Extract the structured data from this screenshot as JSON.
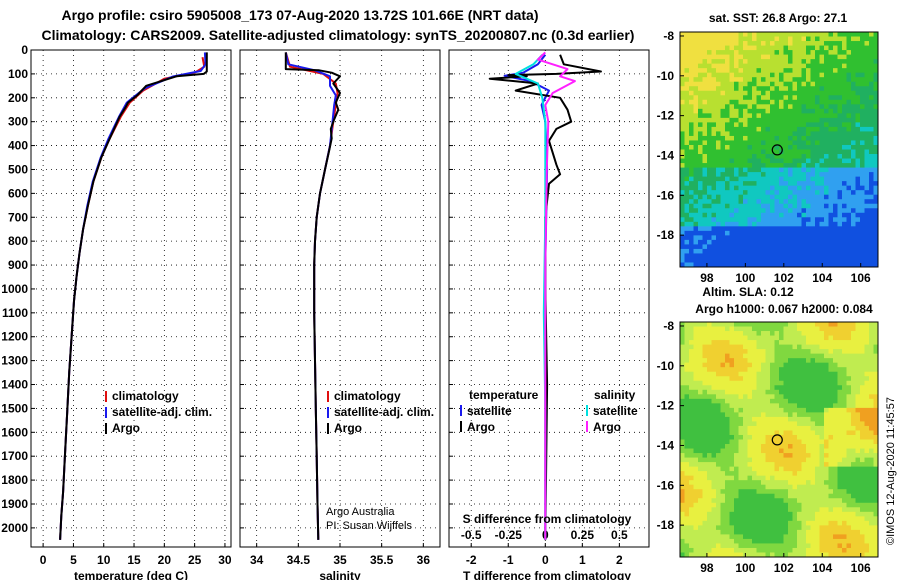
{
  "title": {
    "line1": "Argo profile: csiro 5905008_173 07-Aug-2020 13.72S 101.66E (NRT data)",
    "line2": "Climatology: CARS2009. Satellite-adjusted climatology: synTS_20200807.nc (0.3d earlier)"
  },
  "colors": {
    "climatology": "#e01010",
    "satellite": "#1a1aee",
    "argo": "#000000",
    "sat_salinity": "#00e0e0",
    "argo_salinity": "#ff20ff"
  },
  "chart_data": [
    {
      "type": "line",
      "name": "temperature",
      "xlabel": "temperature (deg C)",
      "xlim": [
        -2,
        31
      ],
      "xticks": [
        0,
        5,
        10,
        15,
        20,
        25,
        30
      ],
      "ylim": [
        0,
        2080
      ],
      "yticks": [
        0,
        100,
        200,
        300,
        400,
        500,
        600,
        700,
        800,
        900,
        1000,
        1100,
        1200,
        1300,
        1400,
        1500,
        1600,
        1700,
        1800,
        1900,
        2000
      ],
      "legend": [
        "climatology",
        "satellite-adj. clim.",
        "Argo"
      ],
      "series": [
        {
          "name": "climatology",
          "color": "#e01010",
          "points": [
            [
              26.3,
              30
            ],
            [
              26.6,
              70
            ],
            [
              25.0,
              95
            ],
            [
              20.0,
              120
            ],
            [
              16.5,
              170
            ],
            [
              14.3,
              220
            ],
            [
              12.8,
              280
            ],
            [
              11.0,
              370
            ],
            [
              9.6,
              450
            ],
            [
              8.3,
              550
            ],
            [
              7.4,
              650
            ],
            [
              6.6,
              750
            ],
            [
              6.0,
              850
            ],
            [
              5.5,
              950
            ],
            [
              5.1,
              1050
            ],
            [
              4.7,
              1200
            ],
            [
              4.3,
              1350
            ],
            [
              4.0,
              1500
            ],
            [
              3.6,
              1700
            ],
            [
              3.3,
              1850
            ],
            [
              3.0,
              1950
            ],
            [
              2.8,
              2050
            ]
          ]
        },
        {
          "name": "satellite-adj. clim.",
          "color": "#1a1aee",
          "points": [
            [
              26.7,
              10
            ],
            [
              26.8,
              60
            ],
            [
              26.0,
              88
            ],
            [
              21.5,
              110
            ],
            [
              16.8,
              160
            ],
            [
              13.8,
              220
            ],
            [
              12.5,
              280
            ],
            [
              10.8,
              370
            ],
            [
              9.5,
              450
            ],
            [
              8.2,
              550
            ],
            [
              7.3,
              650
            ],
            [
              6.6,
              750
            ],
            [
              6.0,
              850
            ],
            [
              5.5,
              950
            ],
            [
              5.1,
              1050
            ],
            [
              4.7,
              1200
            ],
            [
              4.3,
              1350
            ],
            [
              4.0,
              1500
            ],
            [
              3.6,
              1700
            ],
            [
              3.3,
              1850
            ],
            [
              3.0,
              1950
            ],
            [
              2.8,
              2050
            ]
          ]
        },
        {
          "name": "Argo",
          "color": "#000000",
          "points": [
            [
              27.0,
              10
            ],
            [
              27.0,
              90
            ],
            [
              26.5,
              100
            ],
            [
              22.0,
              110
            ],
            [
              17.0,
              150
            ],
            [
              15.5,
              190
            ],
            [
              14.0,
              220
            ],
            [
              13.6,
              240
            ],
            [
              12.6,
              280
            ],
            [
              11.0,
              370
            ],
            [
              9.6,
              450
            ],
            [
              8.3,
              550
            ],
            [
              7.4,
              650
            ],
            [
              6.6,
              750
            ],
            [
              6.0,
              850
            ],
            [
              5.5,
              950
            ],
            [
              5.1,
              1050
            ],
            [
              4.7,
              1200
            ],
            [
              4.3,
              1350
            ],
            [
              4.0,
              1500
            ],
            [
              3.6,
              1700
            ],
            [
              3.3,
              1850
            ],
            [
              3.0,
              1950
            ],
            [
              2.8,
              2050
            ]
          ]
        }
      ]
    },
    {
      "type": "line",
      "name": "salinity",
      "xlabel": "salinity",
      "xlim": [
        33.8,
        36.2
      ],
      "xticks": [
        34,
        34.5,
        35,
        35.5,
        36
      ],
      "xtick_labels": [
        "34",
        "34.5",
        "35",
        "35.5",
        "36"
      ],
      "ylim": [
        0,
        2080
      ],
      "legend": [
        "climatology",
        "satellite-adj. clim.",
        "Argo"
      ],
      "note": [
        "Argo Australia",
        "PI: Susan Wijffels"
      ],
      "series": [
        {
          "name": "climatology",
          "color": "#e01010",
          "points": [
            [
              34.35,
              10
            ],
            [
              34.4,
              70
            ],
            [
              34.8,
              100
            ],
            [
              34.95,
              140
            ],
            [
              34.97,
              180
            ],
            [
              34.95,
              230
            ],
            [
              34.92,
              300
            ],
            [
              34.88,
              400
            ],
            [
              34.82,
              500
            ],
            [
              34.76,
              600
            ],
            [
              34.72,
              700
            ],
            [
              34.7,
              800
            ],
            [
              34.69,
              900
            ],
            [
              34.69,
              1100
            ],
            [
              34.7,
              1300
            ],
            [
              34.71,
              1500
            ],
            [
              34.72,
              1700
            ],
            [
              34.73,
              1900
            ],
            [
              34.74,
              2050
            ]
          ]
        },
        {
          "name": "satellite-adj. clim.",
          "color": "#1a1aee",
          "points": [
            [
              34.35,
              10
            ],
            [
              34.38,
              60
            ],
            [
              34.7,
              85
            ],
            [
              34.88,
              110
            ],
            [
              34.88,
              150
            ],
            [
              34.95,
              190
            ],
            [
              34.93,
              230
            ],
            [
              34.91,
              300
            ],
            [
              34.88,
              400
            ],
            [
              34.82,
              500
            ],
            [
              34.76,
              600
            ],
            [
              34.72,
              700
            ],
            [
              34.7,
              800
            ],
            [
              34.69,
              900
            ],
            [
              34.69,
              1100
            ],
            [
              34.7,
              1300
            ],
            [
              34.71,
              1500
            ],
            [
              34.72,
              1700
            ],
            [
              34.73,
              1900
            ],
            [
              34.74,
              2050
            ]
          ]
        },
        {
          "name": "Argo",
          "color": "#000000",
          "points": [
            [
              34.35,
              10
            ],
            [
              34.35,
              80
            ],
            [
              34.75,
              85
            ],
            [
              34.9,
              95
            ],
            [
              35.0,
              110
            ],
            [
              34.92,
              140
            ],
            [
              35.0,
              180
            ],
            [
              34.95,
              220
            ],
            [
              34.98,
              250
            ],
            [
              34.93,
              290
            ],
            [
              34.89,
              330
            ],
            [
              34.9,
              370
            ],
            [
              34.87,
              420
            ],
            [
              34.82,
              500
            ],
            [
              34.76,
              600
            ],
            [
              34.72,
              700
            ],
            [
              34.7,
              800
            ],
            [
              34.69,
              900
            ],
            [
              34.69,
              1100
            ],
            [
              34.7,
              1300
            ],
            [
              34.71,
              1500
            ],
            [
              34.72,
              1700
            ],
            [
              34.73,
              1900
            ],
            [
              34.74,
              2050
            ]
          ]
        }
      ]
    },
    {
      "type": "line",
      "name": "difference",
      "xlabel": "T difference from climatology",
      "xlim": [
        -2.6,
        2.8
      ],
      "xticks": [
        -2,
        -1,
        0,
        1,
        2
      ],
      "top_axis_label": "S difference from climatology",
      "top_xlim": [
        -0.65,
        0.7
      ],
      "top_xticks": [
        -0.5,
        -0.25,
        0,
        0.25,
        0.5
      ],
      "top_xtick_labels": [
        "-0.5",
        "-0.25",
        "0",
        "0.25",
        "0.5"
      ],
      "ylim": [
        0,
        2080
      ],
      "legend_left": {
        "heading": "temperature",
        "items": [
          "satellite",
          "Argo"
        ]
      },
      "legend_right": {
        "heading": "salinity",
        "items": [
          "satellite",
          "Argo"
        ]
      },
      "series": [
        {
          "name": "T satellite",
          "color": "#1a1aee",
          "axis": "T",
          "points": [
            [
              0,
              20
            ],
            [
              -0.2,
              60
            ],
            [
              -0.6,
              95
            ],
            [
              -1.1,
              108
            ],
            [
              -0.4,
              130
            ],
            [
              0.1,
              170
            ],
            [
              -0.1,
              230
            ],
            [
              0,
              300
            ],
            [
              0.05,
              500
            ],
            [
              0,
              900
            ],
            [
              0,
              1500
            ],
            [
              0,
              2050
            ]
          ]
        },
        {
          "name": "T Argo",
          "color": "#000000",
          "axis": "T",
          "points": [
            [
              0.4,
              20
            ],
            [
              0.5,
              60
            ],
            [
              1.5,
              90
            ],
            [
              0.3,
              100
            ],
            [
              -1.0,
              105
            ],
            [
              -0.5,
              110
            ],
            [
              -1.5,
              120
            ],
            [
              -0.2,
              140
            ],
            [
              -0.8,
              170
            ],
            [
              0.4,
              200
            ],
            [
              0.6,
              250
            ],
            [
              0.7,
              300
            ],
            [
              0.3,
              330
            ],
            [
              0.1,
              380
            ],
            [
              0.3,
              480
            ],
            [
              0.4,
              520
            ],
            [
              0.1,
              560
            ],
            [
              0,
              700
            ],
            [
              0,
              1000
            ],
            [
              0.05,
              1400
            ],
            [
              0,
              2050
            ]
          ]
        },
        {
          "name": "S satellite",
          "color": "#00e0e0",
          "axis": "S",
          "points": [
            [
              -0.02,
              20
            ],
            [
              -0.08,
              60
            ],
            [
              -0.2,
              100
            ],
            [
              -0.05,
              140
            ],
            [
              -0.02,
              200
            ],
            [
              0,
              300
            ],
            [
              0,
              700
            ],
            [
              -0.01,
              1100
            ],
            [
              0,
              1500
            ],
            [
              0,
              2050
            ]
          ]
        },
        {
          "name": "S Argo",
          "color": "#ff20ff",
          "axis": "S",
          "points": [
            [
              0,
              10
            ],
            [
              -0.05,
              40
            ],
            [
              0.15,
              80
            ],
            [
              0.1,
              110
            ],
            [
              0.2,
              130
            ],
            [
              0.05,
              180
            ],
            [
              0,
              230
            ],
            [
              0.02,
              300
            ],
            [
              0.01,
              500
            ],
            [
              0,
              900
            ],
            [
              0,
              1400
            ],
            [
              0,
              2050
            ]
          ]
        }
      ]
    },
    {
      "type": "heatmap",
      "name": "sst_map",
      "title": "sat. SST: 26.8 Argo: 27.1",
      "xlim": [
        96.6,
        106.9
      ],
      "ylim": [
        -19.6,
        -7.8
      ],
      "xticks": [
        98,
        100,
        102,
        104,
        106
      ],
      "yticks": [
        -8,
        -10,
        -12,
        -14,
        -16,
        -18
      ],
      "marker": {
        "lon": 101.66,
        "lat": -13.72
      }
    },
    {
      "type": "heatmap",
      "name": "sla_map",
      "title": "Altim. SLA: 0.12",
      "subtitle": "Argo h1000: 0.067 h2000: 0.084",
      "xlim": [
        96.6,
        106.9
      ],
      "ylim": [
        -19.6,
        -7.8
      ],
      "xticks": [
        98,
        100,
        102,
        104,
        106
      ],
      "yticks": [
        -8,
        -10,
        -12,
        -14,
        -16,
        -18
      ],
      "marker": {
        "lon": 101.66,
        "lat": -13.72
      }
    }
  ],
  "footer": "©IMOS 12-Aug-2020 11:45:57"
}
